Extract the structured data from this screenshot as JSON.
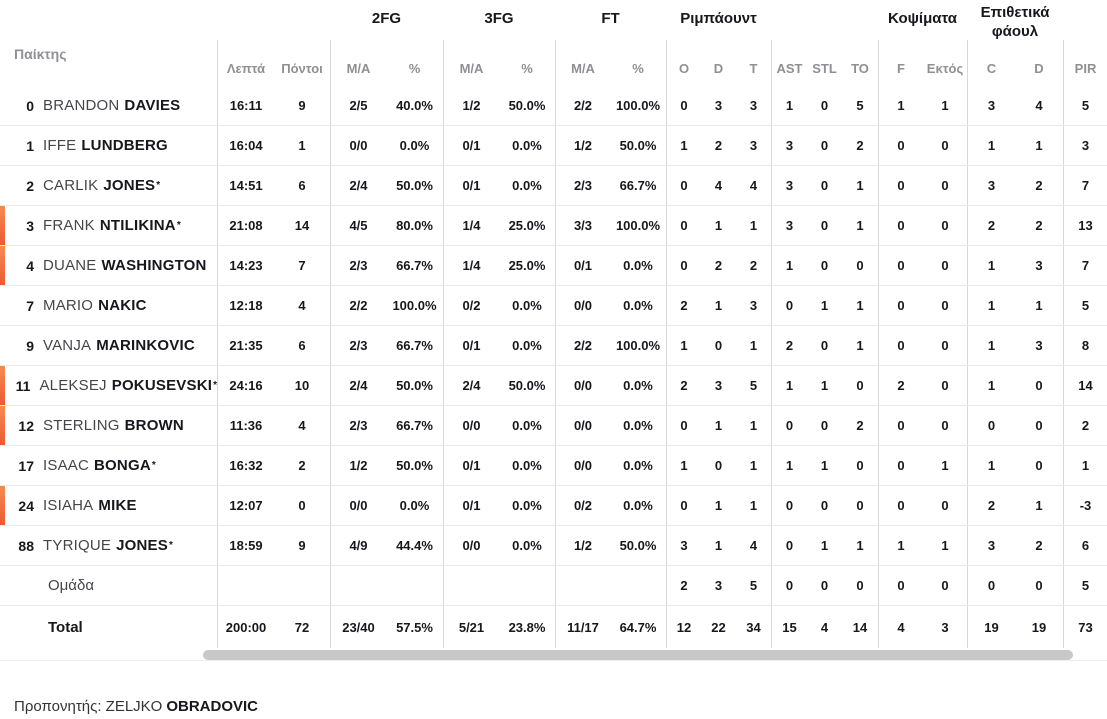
{
  "colors": {
    "accent_orange": "#ee5a34",
    "accent_orange_light": "#f68b51",
    "text_dark": "#17171d",
    "header_gray": "#8f8f95"
  },
  "table": {
    "starter_mark": "*",
    "headers": {
      "player": "Παίκτης",
      "fg2": "2FG",
      "fg3": "3FG",
      "ft": "FT",
      "rebounds": "Ριμπάουντ",
      "blocks": "Κοψίματα",
      "off_fouls": "Επιθετικά φάουλ",
      "min": "Λεπτά",
      "pts": "Πόντοι",
      "ma": "M/A",
      "pct": "%",
      "o": "O",
      "d": "D",
      "t": "T",
      "ast": "AST",
      "stl": "STL",
      "to": "TO",
      "f": "F",
      "out": "Εκτός",
      "c": "C",
      "d2": "D",
      "pir": "PIR"
    },
    "rows": [
      {
        "type": "player",
        "num": "0",
        "first": "BRANDON",
        "last": "DAVIES",
        "star": false,
        "oncourt": false,
        "cells": [
          "16:11",
          "9",
          "2/5",
          "40.0%",
          "1/2",
          "50.0%",
          "2/2",
          "100.0%",
          "0",
          "3",
          "3",
          "1",
          "0",
          "5",
          "1",
          "1",
          "3",
          "4",
          "5"
        ]
      },
      {
        "type": "player",
        "num": "1",
        "first": "IFFE",
        "last": "LUNDBERG",
        "star": false,
        "oncourt": false,
        "cells": [
          "16:04",
          "1",
          "0/0",
          "0.0%",
          "0/1",
          "0.0%",
          "1/2",
          "50.0%",
          "1",
          "2",
          "3",
          "3",
          "0",
          "2",
          "0",
          "0",
          "1",
          "1",
          "3"
        ]
      },
      {
        "type": "player",
        "num": "2",
        "first": "CARLIK",
        "last": "JONES",
        "star": true,
        "oncourt": false,
        "cells": [
          "14:51",
          "6",
          "2/4",
          "50.0%",
          "0/1",
          "0.0%",
          "2/3",
          "66.7%",
          "0",
          "4",
          "4",
          "3",
          "0",
          "1",
          "0",
          "0",
          "3",
          "2",
          "7"
        ]
      },
      {
        "type": "player",
        "num": "3",
        "first": "FRANK",
        "last": "NTILIKINA",
        "star": true,
        "oncourt": true,
        "cells": [
          "21:08",
          "14",
          "4/5",
          "80.0%",
          "1/4",
          "25.0%",
          "3/3",
          "100.0%",
          "0",
          "1",
          "1",
          "3",
          "0",
          "1",
          "0",
          "0",
          "2",
          "2",
          "13"
        ]
      },
      {
        "type": "player",
        "num": "4",
        "first": "DUANE",
        "last": "WASHINGTON",
        "star": false,
        "oncourt": true,
        "cells": [
          "14:23",
          "7",
          "2/3",
          "66.7%",
          "1/4",
          "25.0%",
          "0/1",
          "0.0%",
          "0",
          "2",
          "2",
          "1",
          "0",
          "0",
          "0",
          "0",
          "1",
          "3",
          "7"
        ]
      },
      {
        "type": "player",
        "num": "7",
        "first": "MARIO",
        "last": "NAKIC",
        "star": false,
        "oncourt": false,
        "cells": [
          "12:18",
          "4",
          "2/2",
          "100.0%",
          "0/2",
          "0.0%",
          "0/0",
          "0.0%",
          "2",
          "1",
          "3",
          "0",
          "1",
          "1",
          "0",
          "0",
          "1",
          "1",
          "5"
        ]
      },
      {
        "type": "player",
        "num": "9",
        "first": "VANJA",
        "last": "MARINKOVIC",
        "star": false,
        "oncourt": false,
        "cells": [
          "21:35",
          "6",
          "2/3",
          "66.7%",
          "0/1",
          "0.0%",
          "2/2",
          "100.0%",
          "1",
          "0",
          "1",
          "2",
          "0",
          "1",
          "0",
          "0",
          "1",
          "3",
          "8"
        ]
      },
      {
        "type": "player",
        "num": "11",
        "first": "ALEKSEJ",
        "last": "POKUSEVSKI",
        "star": true,
        "oncourt": true,
        "cells": [
          "24:16",
          "10",
          "2/4",
          "50.0%",
          "2/4",
          "50.0%",
          "0/0",
          "0.0%",
          "2",
          "3",
          "5",
          "1",
          "1",
          "0",
          "2",
          "0",
          "1",
          "0",
          "14"
        ]
      },
      {
        "type": "player",
        "num": "12",
        "first": "STERLING",
        "last": "BROWN",
        "star": false,
        "oncourt": true,
        "cells": [
          "11:36",
          "4",
          "2/3",
          "66.7%",
          "0/0",
          "0.0%",
          "0/0",
          "0.0%",
          "0",
          "1",
          "1",
          "0",
          "0",
          "2",
          "0",
          "0",
          "0",
          "0",
          "2"
        ]
      },
      {
        "type": "player",
        "num": "17",
        "first": "ISAAC",
        "last": "BONGA",
        "star": true,
        "oncourt": false,
        "cells": [
          "16:32",
          "2",
          "1/2",
          "50.0%",
          "0/1",
          "0.0%",
          "0/0",
          "0.0%",
          "1",
          "0",
          "1",
          "1",
          "1",
          "0",
          "0",
          "1",
          "1",
          "0",
          "1"
        ]
      },
      {
        "type": "player",
        "num": "24",
        "first": "ISIAHA",
        "last": "MIKE",
        "star": false,
        "oncourt": true,
        "cells": [
          "12:07",
          "0",
          "0/0",
          "0.0%",
          "0/1",
          "0.0%",
          "0/2",
          "0.0%",
          "0",
          "1",
          "1",
          "0",
          "0",
          "0",
          "0",
          "0",
          "2",
          "1",
          "-3"
        ]
      },
      {
        "type": "player",
        "num": "88",
        "first": "TYRIQUE",
        "last": "JONES",
        "star": true,
        "oncourt": false,
        "cells": [
          "18:59",
          "9",
          "4/9",
          "44.4%",
          "0/0",
          "0.0%",
          "1/2",
          "50.0%",
          "3",
          "1",
          "4",
          "0",
          "1",
          "1",
          "1",
          "1",
          "3",
          "2",
          "6"
        ]
      },
      {
        "type": "team",
        "label": "Ομάδα",
        "oncourt": false,
        "cells": [
          "",
          "",
          "",
          "",
          "",
          "",
          "",
          "",
          "2",
          "3",
          "5",
          "0",
          "0",
          "0",
          "0",
          "0",
          "0",
          "0",
          "5"
        ]
      },
      {
        "type": "total",
        "label": "Total",
        "oncourt": false,
        "cells": [
          "200:00",
          "72",
          "23/40",
          "57.5%",
          "5/21",
          "23.8%",
          "11/17",
          "64.7%",
          "12",
          "22",
          "34",
          "15",
          "4",
          "14",
          "4",
          "3",
          "19",
          "19",
          "73"
        ]
      }
    ]
  },
  "footer": {
    "coach_label": "Προπονητής:",
    "coach_first": "ZELJKO",
    "coach_last": "OBRADOVIC"
  }
}
